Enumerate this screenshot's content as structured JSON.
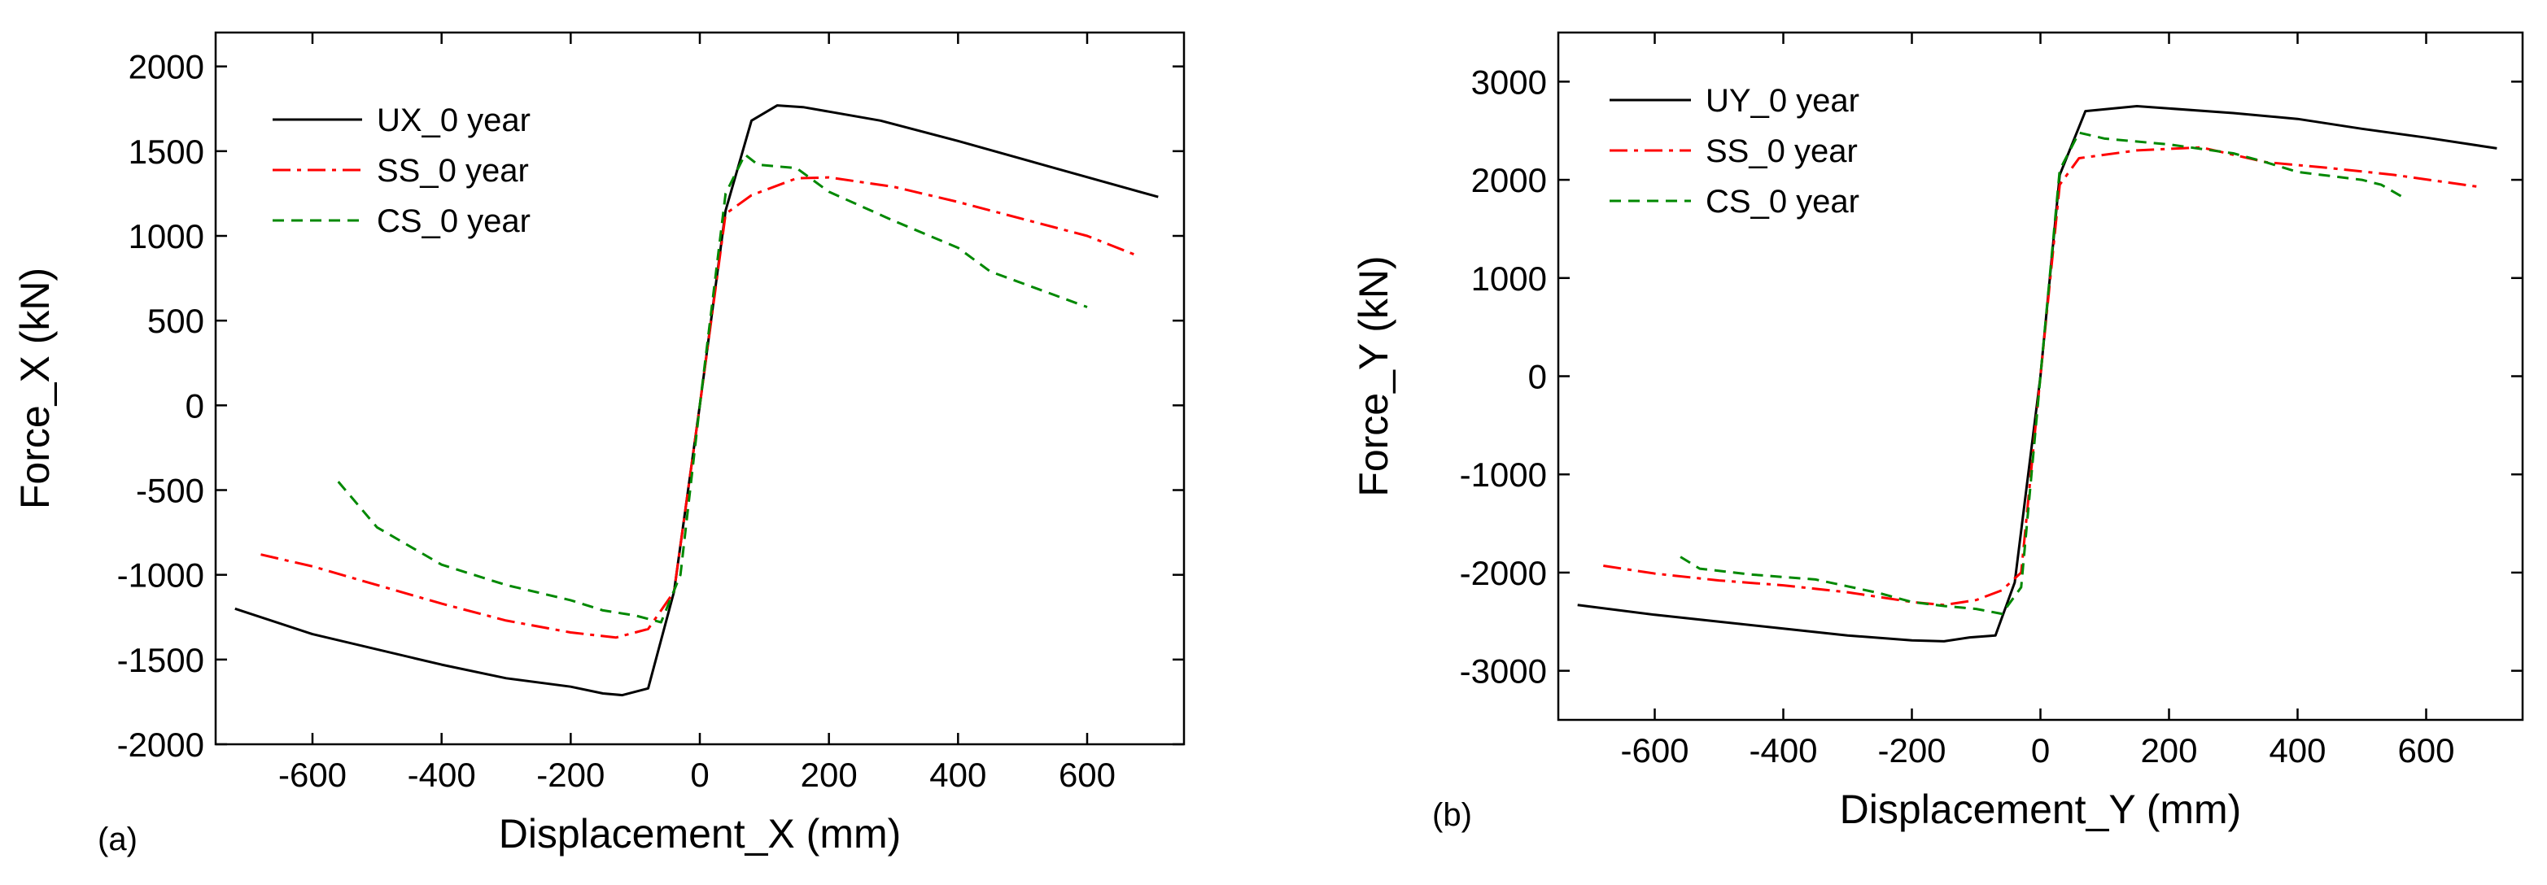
{
  "chart_data": [
    {
      "type": "line",
      "panel_label": "(a)",
      "title": "",
      "xlabel": "Displacement_X (mm)",
      "ylabel": "Force_X (kN)",
      "xlim": [
        -750,
        750
      ],
      "ylim": [
        -2000,
        2200
      ],
      "xticks": [
        -600,
        -400,
        -200,
        0,
        200,
        400,
        600
      ],
      "yticks": [
        -2000,
        -1500,
        -1000,
        -500,
        0,
        500,
        1000,
        1500,
        2000
      ],
      "grid": false,
      "legend_position": "top-left",
      "series": [
        {
          "name": "UX_0 year",
          "color": "#000000",
          "dash": "solid",
          "points": [
            [
              -720,
              -1200
            ],
            [
              -600,
              -1350
            ],
            [
              -400,
              -1530
            ],
            [
              -300,
              -1610
            ],
            [
              -200,
              -1660
            ],
            [
              -150,
              -1700
            ],
            [
              -120,
              -1710
            ],
            [
              -80,
              -1670
            ],
            [
              -40,
              -1100
            ],
            [
              0,
              0
            ],
            [
              40,
              1150
            ],
            [
              80,
              1680
            ],
            [
              120,
              1770
            ],
            [
              160,
              1760
            ],
            [
              280,
              1680
            ],
            [
              400,
              1560
            ],
            [
              550,
              1400
            ],
            [
              710,
              1230
            ]
          ]
        },
        {
          "name": "SS_0 year",
          "color": "#ff0000",
          "dash": "dashdot",
          "points": [
            [
              -680,
              -880
            ],
            [
              -600,
              -950
            ],
            [
              -500,
              -1060
            ],
            [
              -400,
              -1170
            ],
            [
              -300,
              -1270
            ],
            [
              -200,
              -1340
            ],
            [
              -130,
              -1370
            ],
            [
              -80,
              -1320
            ],
            [
              -40,
              -1100
            ],
            [
              0,
              0
            ],
            [
              40,
              1130
            ],
            [
              80,
              1240
            ],
            [
              150,
              1340
            ],
            [
              200,
              1345
            ],
            [
              300,
              1290
            ],
            [
              400,
              1200
            ],
            [
              500,
              1100
            ],
            [
              600,
              1000
            ],
            [
              680,
              880
            ]
          ]
        },
        {
          "name": "CS_0 year",
          "color": "#008800",
          "dash": "dashed",
          "points": [
            [
              -560,
              -450
            ],
            [
              -500,
              -720
            ],
            [
              -400,
              -940
            ],
            [
              -300,
              -1060
            ],
            [
              -200,
              -1150
            ],
            [
              -150,
              -1210
            ],
            [
              -100,
              -1240
            ],
            [
              -60,
              -1280
            ],
            [
              -30,
              -1000
            ],
            [
              0,
              0
            ],
            [
              40,
              1250
            ],
            [
              70,
              1480
            ],
            [
              90,
              1420
            ],
            [
              150,
              1400
            ],
            [
              200,
              1260
            ],
            [
              300,
              1090
            ],
            [
              400,
              930
            ],
            [
              450,
              790
            ],
            [
              550,
              650
            ],
            [
              600,
              580
            ]
          ]
        }
      ]
    },
    {
      "type": "line",
      "panel_label": "(b)",
      "title": "",
      "xlabel": "Displacement_Y (mm)",
      "ylabel": "Force_Y (kN)",
      "xlim": [
        -750,
        750
      ],
      "ylim": [
        -3500,
        3500
      ],
      "xticks": [
        -600,
        -400,
        -200,
        0,
        200,
        400,
        600
      ],
      "yticks": [
        -3000,
        -2000,
        -1000,
        0,
        1000,
        2000,
        3000
      ],
      "grid": false,
      "legend_position": "top-left",
      "series": [
        {
          "name": "UY_0 year",
          "color": "#000000",
          "dash": "solid",
          "points": [
            [
              -720,
              -2330
            ],
            [
              -600,
              -2430
            ],
            [
              -400,
              -2570
            ],
            [
              -300,
              -2640
            ],
            [
              -200,
              -2690
            ],
            [
              -150,
              -2700
            ],
            [
              -110,
              -2660
            ],
            [
              -70,
              -2640
            ],
            [
              -40,
              -2100
            ],
            [
              0,
              0
            ],
            [
              30,
              2050
            ],
            [
              70,
              2700
            ],
            [
              150,
              2750
            ],
            [
              300,
              2680
            ],
            [
              400,
              2620
            ],
            [
              500,
              2520
            ],
            [
              600,
              2430
            ],
            [
              710,
              2320
            ]
          ]
        },
        {
          "name": "SS_0 year",
          "color": "#ff0000",
          "dash": "dashdot",
          "points": [
            [
              -680,
              -1930
            ],
            [
              -600,
              -2010
            ],
            [
              -500,
              -2080
            ],
            [
              -400,
              -2130
            ],
            [
              -300,
              -2200
            ],
            [
              -200,
              -2300
            ],
            [
              -150,
              -2330
            ],
            [
              -100,
              -2280
            ],
            [
              -60,
              -2180
            ],
            [
              -30,
              -2000
            ],
            [
              0,
              0
            ],
            [
              30,
              1950
            ],
            [
              60,
              2220
            ],
            [
              150,
              2300
            ],
            [
              250,
              2330
            ],
            [
              350,
              2180
            ],
            [
              450,
              2120
            ],
            [
              550,
              2050
            ],
            [
              680,
              1930
            ]
          ]
        },
        {
          "name": "CS_0 year",
          "color": "#008800",
          "dash": "dashed",
          "points": [
            [
              -560,
              -1840
            ],
            [
              -530,
              -1960
            ],
            [
              -450,
              -2020
            ],
            [
              -350,
              -2070
            ],
            [
              -300,
              -2140
            ],
            [
              -250,
              -2210
            ],
            [
              -200,
              -2300
            ],
            [
              -150,
              -2340
            ],
            [
              -100,
              -2370
            ],
            [
              -60,
              -2420
            ],
            [
              -30,
              -2150
            ],
            [
              0,
              0
            ],
            [
              30,
              2100
            ],
            [
              60,
              2480
            ],
            [
              100,
              2420
            ],
            [
              200,
              2360
            ],
            [
              300,
              2270
            ],
            [
              350,
              2180
            ],
            [
              400,
              2080
            ],
            [
              500,
              2000
            ],
            [
              530,
              1950
            ],
            [
              570,
              1800
            ]
          ]
        }
      ]
    }
  ]
}
